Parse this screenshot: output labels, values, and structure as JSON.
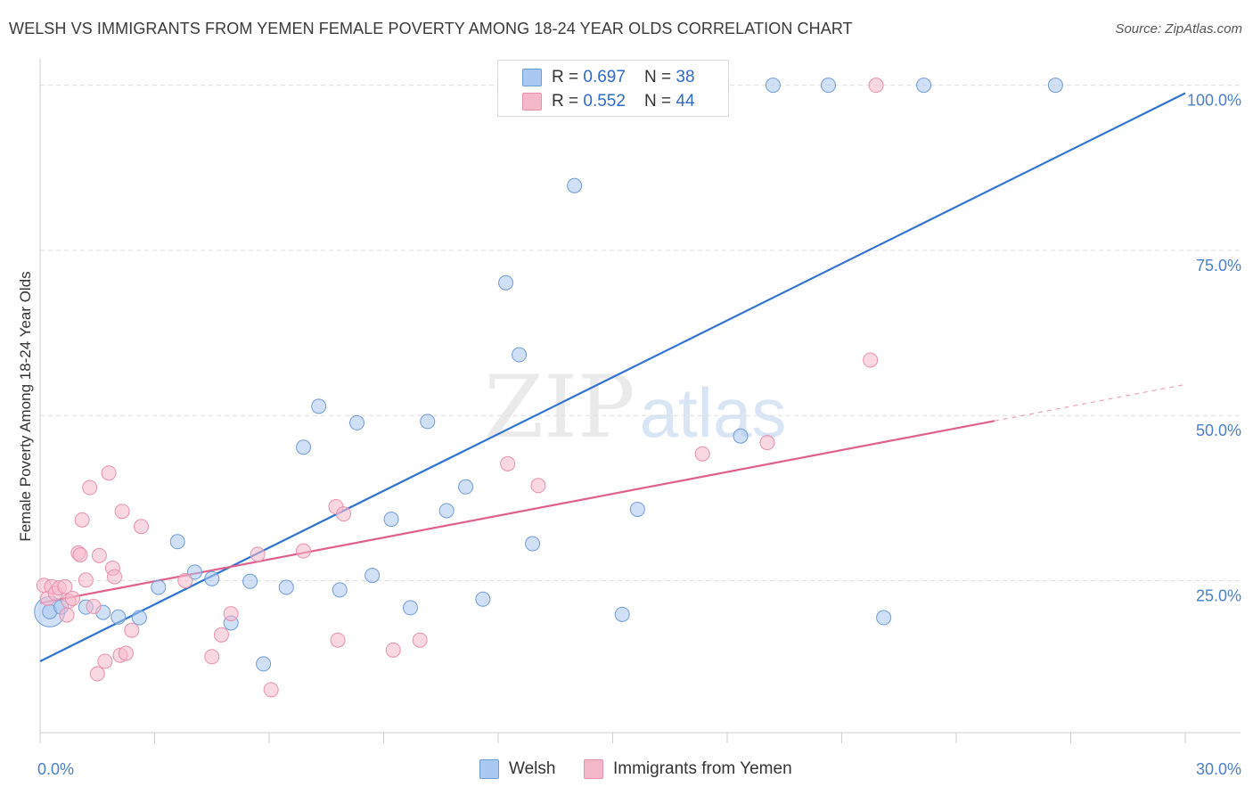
{
  "title": "WELSH VS IMMIGRANTS FROM YEMEN FEMALE POVERTY AMONG 18-24 YEAR OLDS CORRELATION CHART",
  "source": "Source: ZipAtlas.com",
  "watermark": {
    "zip": "ZIP",
    "atlas": "atlas"
  },
  "legend": {
    "rows": [
      {
        "r_label": "R = ",
        "r_value": "0.697",
        "n_label": "N = ",
        "n_value": "38",
        "color": "#aac8f0"
      },
      {
        "r_label": "R = ",
        "r_value": "0.552",
        "n_label": "N = ",
        "n_value": "44",
        "color": "#f5b8cb"
      }
    ]
  },
  "chart_data": {
    "type": "scatter",
    "xlabel": "",
    "ylabel": "Female Poverty Among 18-24 Year Olds",
    "xlim": [
      0,
      30
    ],
    "ylim": [
      2,
      104
    ],
    "x_tick_labels": [
      {
        "value": 0,
        "label": "0.0%"
      },
      {
        "value": 30,
        "label": "30.0%"
      }
    ],
    "y_tick_labels": [
      {
        "value": 25,
        "label": "25.0%"
      },
      {
        "value": 50,
        "label": "50.0%"
      },
      {
        "value": 75,
        "label": "75.0%"
      },
      {
        "value": 100,
        "label": "100.0%"
      }
    ],
    "y_gridlines": [
      25,
      50,
      75,
      100
    ],
    "series": [
      {
        "name": "Welsh",
        "color": "#aac8f0",
        "stroke": "#6f9bd8",
        "line_color": "#2e74d0",
        "trend": {
          "x0": 0,
          "y0": 12.8,
          "x1": 30,
          "y1": 98.8,
          "solid_until": 30
        },
        "points": [
          [
            0.25,
            20.3
          ],
          [
            0.55,
            21.0
          ],
          [
            1.2,
            21.0
          ],
          [
            1.65,
            20.2
          ],
          [
            2.05,
            19.5
          ],
          [
            2.6,
            19.4
          ],
          [
            3.1,
            24.0
          ],
          [
            3.6,
            30.9
          ],
          [
            4.05,
            26.3
          ],
          [
            4.5,
            25.3
          ],
          [
            5.0,
            18.6
          ],
          [
            5.5,
            24.9
          ],
          [
            5.85,
            12.4
          ],
          [
            6.45,
            24.0
          ],
          [
            6.9,
            45.2
          ],
          [
            7.3,
            51.4
          ],
          [
            7.85,
            23.6
          ],
          [
            8.3,
            48.9
          ],
          [
            8.7,
            25.8
          ],
          [
            9.2,
            34.3
          ],
          [
            9.7,
            20.9
          ],
          [
            10.15,
            49.1
          ],
          [
            10.65,
            35.6
          ],
          [
            11.15,
            39.2
          ],
          [
            11.6,
            22.2
          ],
          [
            12.2,
            70.1
          ],
          [
            12.55,
            59.2
          ],
          [
            12.9,
            30.6
          ],
          [
            14.0,
            84.8
          ],
          [
            14.6,
            100.0
          ],
          [
            15.25,
            19.9
          ],
          [
            15.65,
            35.8
          ],
          [
            18.35,
            46.9
          ],
          [
            19.2,
            100.0
          ],
          [
            20.65,
            100.0
          ],
          [
            22.1,
            19.4
          ],
          [
            23.15,
            100.0
          ],
          [
            26.6,
            100.0
          ]
        ]
      },
      {
        "name": "Immigrants from Yemen",
        "color": "#f5b8cb",
        "stroke": "#e990ad",
        "line_color": "#e0608c",
        "trend": {
          "x0": 0,
          "y0": 21.6,
          "x1": 30,
          "y1": 54.7,
          "solid_until": 25
        },
        "points": [
          [
            0.1,
            24.3
          ],
          [
            0.2,
            22.3
          ],
          [
            0.3,
            24.1
          ],
          [
            0.4,
            23.1
          ],
          [
            0.5,
            23.9
          ],
          [
            0.65,
            24.1
          ],
          [
            0.7,
            19.8
          ],
          [
            0.75,
            21.9
          ],
          [
            0.85,
            22.3
          ],
          [
            1.0,
            29.2
          ],
          [
            1.05,
            28.9
          ],
          [
            1.1,
            34.2
          ],
          [
            1.2,
            25.1
          ],
          [
            1.3,
            39.1
          ],
          [
            1.4,
            21.1
          ],
          [
            1.5,
            10.9
          ],
          [
            1.55,
            28.8
          ],
          [
            1.7,
            12.8
          ],
          [
            1.8,
            41.3
          ],
          [
            1.9,
            26.9
          ],
          [
            1.95,
            25.6
          ],
          [
            2.1,
            13.7
          ],
          [
            2.15,
            35.5
          ],
          [
            2.25,
            14.0
          ],
          [
            2.4,
            17.5
          ],
          [
            2.65,
            33.2
          ],
          [
            3.8,
            25.0
          ],
          [
            4.5,
            13.5
          ],
          [
            4.75,
            16.8
          ],
          [
            5.0,
            20.0
          ],
          [
            5.7,
            29.0
          ],
          [
            6.05,
            8.5
          ],
          [
            6.9,
            29.5
          ],
          [
            7.75,
            36.2
          ],
          [
            7.95,
            35.1
          ],
          [
            7.8,
            16.0
          ],
          [
            9.25,
            14.5
          ],
          [
            9.95,
            16.0
          ],
          [
            12.25,
            42.7
          ],
          [
            13.05,
            39.4
          ],
          [
            17.35,
            44.2
          ],
          [
            19.05,
            45.9
          ],
          [
            21.75,
            58.4
          ],
          [
            21.9,
            100.0
          ]
        ]
      }
    ]
  },
  "bottom_legend": [
    {
      "label": "Welsh",
      "color": "#aac8f0"
    },
    {
      "label": "Immigrants from Yemen",
      "color": "#f5b8cb"
    }
  ]
}
